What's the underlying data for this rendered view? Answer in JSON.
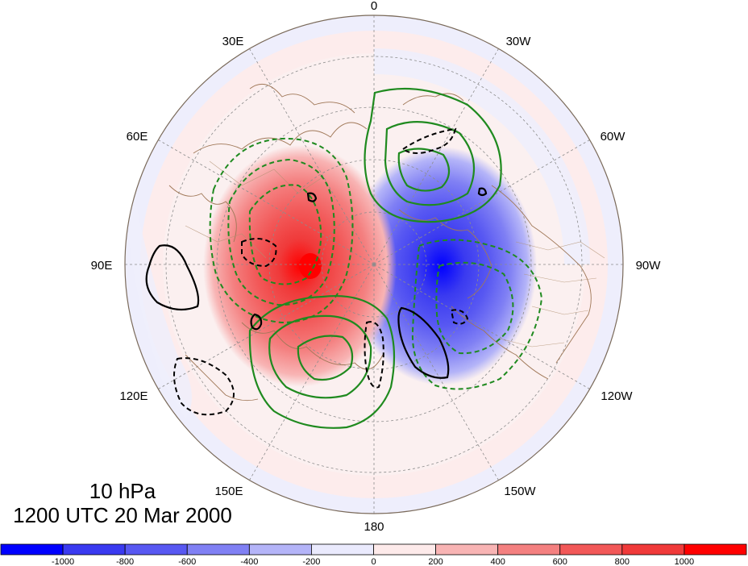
{
  "map": {
    "projection": "polar stereographic",
    "longitude_labels": [
      "0",
      "30W",
      "60W",
      "90W",
      "120W",
      "150W",
      "180",
      "150E",
      "120E",
      "90E",
      "60E",
      "30E"
    ],
    "filled_field": "shaded anomaly",
    "contour_field": "line contours",
    "colors": {
      "coastline": "#a07858",
      "positive_contour": "#1f8a1f",
      "anomaly_contour": "#000000",
      "graticule": "#8c8c8c"
    }
  },
  "title": {
    "level": "10 hPa",
    "time": "1200 UTC 20 Mar 2000"
  },
  "colorbar": {
    "tick_labels": [
      "-1000",
      "-800",
      "-600",
      "-400",
      "-200",
      "0",
      "200",
      "400",
      "600",
      "800",
      "1000"
    ],
    "colors": [
      "#0000ff",
      "#3a3af0",
      "#5858f2",
      "#8080f4",
      "#b4b4f8",
      "#eaeafd",
      "#fdeaea",
      "#f8b4b4",
      "#f48080",
      "#f25858",
      "#f03a3a",
      "#ff0000"
    ]
  }
}
